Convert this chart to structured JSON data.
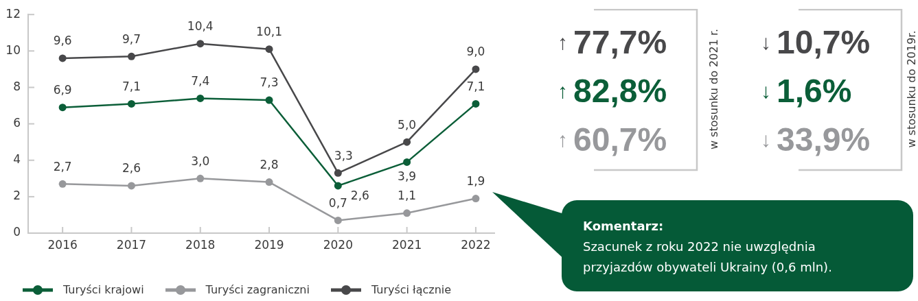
{
  "chart_data": {
    "type": "line",
    "categories": [
      "2016",
      "2017",
      "2018",
      "2019",
      "2020",
      "2021",
      "2022"
    ],
    "series": [
      {
        "name": "Turyści krajowi",
        "color": "#0b5e38",
        "values": [
          6.9,
          7.1,
          7.4,
          7.3,
          2.6,
          3.9,
          7.1
        ],
        "value_labels": [
          "6,9",
          "7,1",
          "7,4",
          "7,3",
          "2,6",
          "3,9",
          "7,1"
        ]
      },
      {
        "name": "Turyści zagraniczni",
        "color": "#97989b",
        "values": [
          2.7,
          2.6,
          3.0,
          2.8,
          0.7,
          1.1,
          1.9
        ],
        "value_labels": [
          "2,7",
          "2,6",
          "3,0",
          "2,8",
          "0,7",
          "1,1",
          "1,9"
        ]
      },
      {
        "name": "Turyści łącznie",
        "color": "#48484a",
        "values": [
          9.6,
          9.7,
          10.4,
          10.1,
          3.3,
          5.0,
          9.0
        ],
        "value_labels": [
          "9,6",
          "9,7",
          "10,4",
          "10,1",
          "3,3",
          "5,0",
          "9,0"
        ]
      }
    ],
    "ylim": [
      0,
      12
    ],
    "yticks": [
      0,
      2,
      4,
      6,
      8,
      10,
      12
    ],
    "legend": "bottom",
    "marker": "circle",
    "annotations": [
      "↑77,7%",
      "↑82,8%",
      "↑60,7%",
      "w stosunku do 2021 r.",
      "↓10,7%",
      "↓1,6%",
      "↓33,9%",
      "w stosunku do 2019r.",
      "Komentarz:",
      "Szacunek z roku 2022 nie uwzględnia przyjazdów obywateli Ukrainy (0,6 mln)."
    ]
  }
}
